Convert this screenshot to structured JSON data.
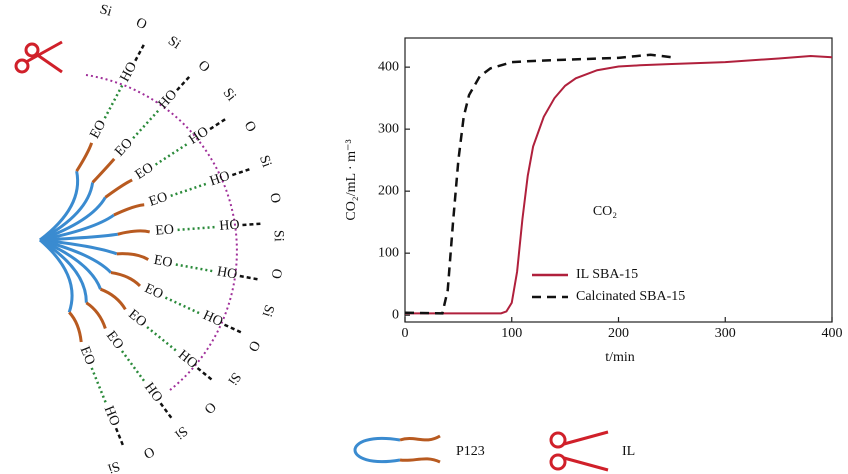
{
  "chart_data": {
    "type": "line",
    "xlabel": "t/min",
    "ylabel": "CO₂/mL · m⁻³",
    "annotation": "CO₂",
    "xlim": [
      0,
      400
    ],
    "xticks": [
      0,
      100,
      200,
      300,
      400
    ],
    "ylim": [
      -11,
      447
    ],
    "yticks": [
      0,
      100,
      200,
      300,
      400
    ],
    "legend": "lower right",
    "series": [
      {
        "name": "IL SBA-15",
        "color": "#b0203c",
        "dash": false,
        "x": [
          0,
          90,
          95,
          100,
          105,
          110,
          115,
          120,
          130,
          140,
          150,
          160,
          180,
          200,
          220,
          250,
          300,
          350,
          380,
          400
        ],
        "values": [
          3,
          3,
          6,
          20,
          70,
          155,
          225,
          272,
          320,
          350,
          370,
          382,
          395,
          401,
          403,
          405,
          408,
          414,
          418,
          416
        ]
      },
      {
        "name": "Calcinated SBA-15",
        "color": "#111111",
        "dash": true,
        "x": [
          0,
          35,
          40,
          45,
          50,
          55,
          60,
          70,
          80,
          100,
          120,
          150,
          200,
          230,
          240,
          250
        ],
        "values": [
          4,
          3,
          40,
          150,
          250,
          320,
          355,
          385,
          398,
          408,
          410,
          412,
          415,
          420,
          418,
          416
        ]
      }
    ]
  },
  "diagram": {
    "chain": [
      "Si",
      "O",
      "Si",
      "O",
      "Si",
      "O",
      "Si",
      "O",
      "Si",
      "O",
      "Si",
      "O",
      "Si",
      "O",
      "Si",
      "O",
      "Si"
    ],
    "hydroxyl": [
      "HO",
      "HO",
      "HO",
      "HO",
      "HO",
      "HO",
      "HO",
      "HO",
      "HO",
      "HO"
    ],
    "ethylene_oxide": [
      "EO",
      "EO",
      "EO",
      "EO",
      "EO",
      "EO",
      "EO",
      "EO",
      "EO",
      "EO"
    ],
    "legend": {
      "p123": "P123",
      "il": "IL"
    }
  }
}
